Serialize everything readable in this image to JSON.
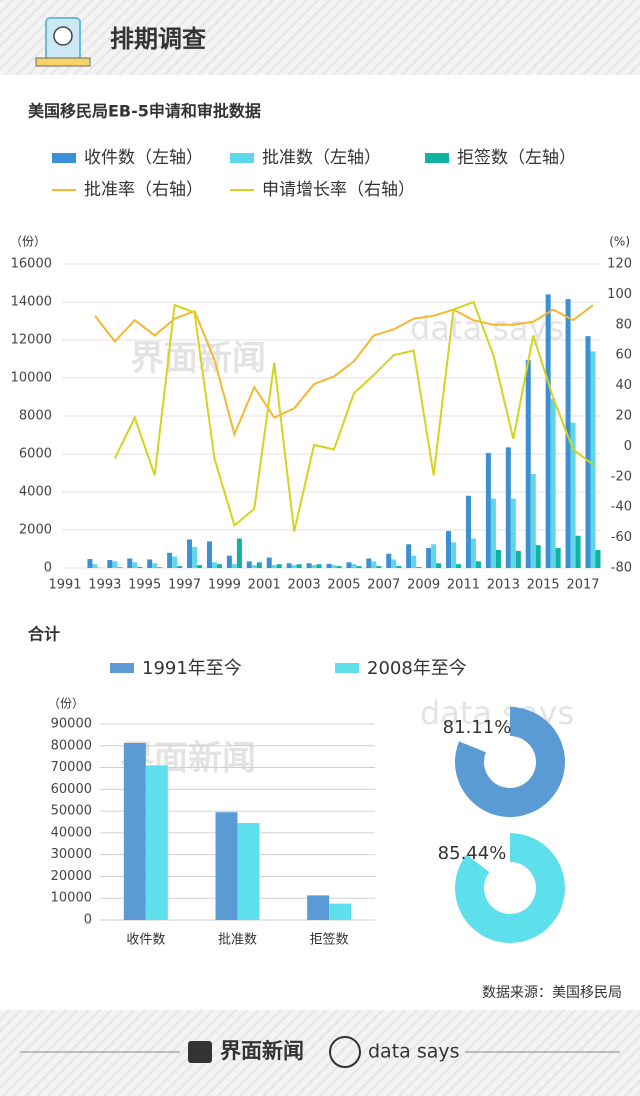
{
  "header": {
    "title": "排期调查"
  },
  "source": "数据来源：美国移民局",
  "footer": {
    "brand": "界面新闻",
    "tagline": "data says"
  },
  "chart_data": [
    {
      "type": "bar",
      "title": "美国移民局EB-5申请和审批数据",
      "y_label": "（份）",
      "y2_label": "(%)",
      "categories": [
        "1991",
        null,
        "1993",
        null,
        "1995",
        null,
        "1997",
        null,
        "1999",
        null,
        "2001",
        null,
        "2003",
        null,
        "2005",
        null,
        "2007",
        null,
        "2009",
        null,
        "2011",
        null,
        "2013",
        null,
        "2015",
        null,
        "2017"
      ],
      "ylim": [
        0,
        16000
      ],
      "yticks": [
        0,
        2000,
        4000,
        6000,
        8000,
        10000,
        12000,
        14000,
        16000
      ],
      "y2lim": [
        -80,
        120
      ],
      "y2ticks": [
        -80,
        -60,
        -40,
        -20,
        0,
        20,
        40,
        60,
        80,
        100,
        120
      ],
      "grid": true,
      "series": [
        {
          "name": "收件数（左轴）",
          "type": "bar",
          "color": "#3b8fd4",
          "values": [
            null,
            470,
            420,
            500,
            450,
            800,
            1500,
            1400,
            650,
            350,
            550,
            250,
            250,
            220,
            300,
            500,
            750,
            1250,
            1050,
            1950,
            3800,
            6050,
            6350,
            10950,
            14400,
            14150,
            12200
          ]
        },
        {
          "name": "批准数（左轴）",
          "type": "bar",
          "color": "#5dd8e8",
          "values": [
            null,
            200,
            350,
            300,
            250,
            600,
            1100,
            300,
            200,
            150,
            150,
            150,
            150,
            150,
            200,
            350,
            450,
            650,
            1250,
            1350,
            1550,
            3650,
            3650,
            4950,
            8900,
            7650,
            11400
          ]
        },
        {
          "name": "拒签数（左轴）",
          "type": "bar",
          "color": "#10b3a0",
          "values": [
            null,
            10,
            40,
            60,
            40,
            100,
            150,
            200,
            1550,
            300,
            200,
            200,
            200,
            100,
            100,
            100,
            100,
            50,
            250,
            200,
            350,
            950,
            900,
            1200,
            1050,
            1700,
            950
          ]
        },
        {
          "name": "批准率（右轴）",
          "type": "line",
          "axis": "y2",
          "color": "#f5b731",
          "values": [
            null,
            86,
            69,
            83,
            73,
            84,
            89,
            57,
            8,
            39,
            19,
            25,
            41,
            46,
            56,
            73,
            77,
            84,
            86,
            90,
            83,
            80,
            80,
            82,
            90,
            83,
            93
          ]
        },
        {
          "name": "申请增长率（右轴）",
          "type": "line",
          "axis": "y2",
          "color": "#d4d41e",
          "values": [
            null,
            null,
            -8,
            19,
            -19,
            93,
            88,
            -8,
            -52,
            -41,
            55,
            -56,
            1,
            -2,
            35,
            47,
            60,
            63,
            -19,
            90,
            95,
            60,
            5,
            73,
            32,
            -2,
            -12
          ]
        }
      ]
    },
    {
      "type": "bar",
      "title": "合计",
      "y_label": "（份）",
      "categories": [
        "收件数",
        "批准数",
        "拒签数"
      ],
      "ylim": [
        0,
        90000
      ],
      "yticks": [
        0,
        10000,
        20000,
        30000,
        40000,
        50000,
        60000,
        70000,
        80000,
        90000
      ],
      "grid": true,
      "series": [
        {
          "name": "1991年至今",
          "color": "#5b9bd5",
          "values": [
            81300,
            49500,
            11300
          ]
        },
        {
          "name": "2008年至今",
          "color": "#5ee0ec",
          "values": [
            71000,
            44500,
            7500
          ]
        }
      ]
    },
    {
      "type": "donut",
      "values": [
        81.11
      ],
      "value_labels": [
        "81.11%"
      ],
      "color": "#5b9bd5"
    },
    {
      "type": "donut",
      "values": [
        85.44
      ],
      "value_labels": [
        "85.44%"
      ],
      "color": "#5ee0ec"
    }
  ]
}
